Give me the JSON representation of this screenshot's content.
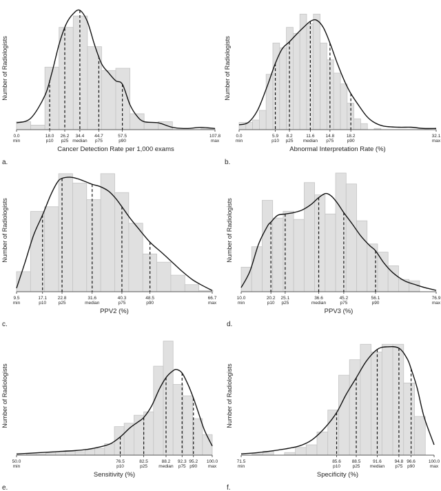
{
  "chart_data": [
    {
      "panel": "a.",
      "type": "area",
      "xlabel": "Cancer Detection Rate per 1,000 exams",
      "ylabel": "Number of Radiologists",
      "xlim": [
        0.0,
        107.8
      ],
      "ticks": [
        {
          "value": 0.0,
          "text": "0.0",
          "name": "min"
        },
        {
          "value": 18.0,
          "text": "18.0",
          "name": "p10"
        },
        {
          "value": 26.2,
          "text": "26.2",
          "name": "p25"
        },
        {
          "value": 34.4,
          "text": "34.4",
          "name": "median"
        },
        {
          "value": 44.7,
          "text": "44.7",
          "name": "p75"
        },
        {
          "value": 57.5,
          "text": "57.5",
          "name": "p90"
        },
        {
          "value": 107.8,
          "text": "107.8",
          "name": "max"
        }
      ],
      "percentile_lines": [
        18.0,
        26.2,
        34.4,
        44.7,
        57.5
      ],
      "histogram": {
        "bins": [
          0,
          7.7,
          15.4,
          23.1,
          30.8,
          38.5,
          46.2,
          53.9,
          61.6,
          69.3,
          77.0,
          84.7,
          92.4,
          100.1,
          107.8
        ],
        "counts": [
          7,
          4,
          55,
          90,
          100,
          73,
          52,
          54,
          14,
          6,
          7,
          0,
          0,
          1
        ]
      },
      "density": [
        [
          0.0,
          6
        ],
        [
          7.7,
          10
        ],
        [
          15.4,
          30
        ],
        [
          19.2,
          50
        ],
        [
          23.1,
          75
        ],
        [
          27.0,
          93
        ],
        [
          30.8,
          102
        ],
        [
          34.4,
          105
        ],
        [
          38.5,
          95
        ],
        [
          42.3,
          75
        ],
        [
          46.2,
          58
        ],
        [
          50.0,
          50
        ],
        [
          53.9,
          43
        ],
        [
          57.5,
          40
        ],
        [
          61.6,
          22
        ],
        [
          65.4,
          12
        ],
        [
          69.3,
          7
        ],
        [
          77.0,
          6
        ],
        [
          84.7,
          2
        ],
        [
          92.4,
          1
        ],
        [
          100.1,
          2
        ],
        [
          107.8,
          1
        ]
      ]
    },
    {
      "panel": "b.",
      "type": "area",
      "xlabel": "Abnormal Interpretation Rate (%)",
      "ylabel": "Number of Radiologists",
      "xlim": [
        0.0,
        32.1
      ],
      "ticks": [
        {
          "value": 0.0,
          "text": "0.0",
          "name": "min"
        },
        {
          "value": 5.9,
          "text": "5.9",
          "name": "p10"
        },
        {
          "value": 8.2,
          "text": "8.2",
          "name": "p25"
        },
        {
          "value": 11.6,
          "text": "11.6",
          "name": "median"
        },
        {
          "value": 14.8,
          "text": "14.8",
          "name": "p75"
        },
        {
          "value": 18.2,
          "text": "18.2",
          "name": "p90"
        },
        {
          "value": 32.1,
          "text": "32.1",
          "name": "max"
        }
      ],
      "percentile_lines": [
        5.9,
        8.2,
        11.6,
        14.8,
        18.2
      ],
      "histogram": {
        "bins": [
          0,
          1.1,
          2.2,
          3.3,
          4.4,
          5.5,
          6.6,
          7.7,
          8.8,
          9.9,
          11.0,
          12.1,
          13.2,
          14.3,
          15.4,
          16.5,
          17.6,
          18.7,
          19.8,
          20.9,
          22.0,
          23.1
        ],
        "counts": [
          6,
          6,
          8,
          16,
          46,
          72,
          68,
          85,
          80,
          96,
          88,
          96,
          72,
          58,
          47,
          38,
          22,
          9,
          5,
          0,
          1
        ]
      },
      "density": [
        [
          0.0,
          4
        ],
        [
          1.5,
          6
        ],
        [
          3.0,
          16
        ],
        [
          4.5,
          35
        ],
        [
          5.9,
          55
        ],
        [
          7.0,
          67
        ],
        [
          8.2,
          73
        ],
        [
          9.5,
          80
        ],
        [
          10.5,
          85
        ],
        [
          11.6,
          90
        ],
        [
          12.6,
          91
        ],
        [
          13.7,
          85
        ],
        [
          14.8,
          72
        ],
        [
          16.0,
          55
        ],
        [
          17.2,
          40
        ],
        [
          18.2,
          30
        ],
        [
          19.5,
          20
        ],
        [
          20.8,
          11
        ],
        [
          22.0,
          6
        ],
        [
          23.5,
          3
        ],
        [
          26.0,
          2
        ],
        [
          28.0,
          2
        ],
        [
          30.0,
          1
        ],
        [
          32.1,
          1
        ]
      ]
    },
    {
      "panel": "c.",
      "type": "area",
      "xlabel": "PPV2 (%)",
      "ylabel": "Number of Radiologists",
      "xlim": [
        9.5,
        66.7
      ],
      "ticks": [
        {
          "value": 9.5,
          "text": "9.5",
          "name": "min"
        },
        {
          "value": 17.1,
          "text": "17.1",
          "name": "p10"
        },
        {
          "value": 22.8,
          "text": "22.8",
          "name": "p25"
        },
        {
          "value": 31.6,
          "text": "31.6",
          "name": "median"
        },
        {
          "value": 40.3,
          "text": "40.3",
          "name": "p75"
        },
        {
          "value": 48.5,
          "text": "48.5",
          "name": "p90"
        },
        {
          "value": 66.7,
          "text": "66.7",
          "name": "max"
        }
      ],
      "percentile_lines": [
        17.1,
        22.8,
        31.6,
        40.3,
        48.5
      ],
      "histogram": {
        "bins": [
          9.5,
          13.6,
          17.7,
          21.8,
          25.9,
          30.0,
          34.1,
          38.2,
          42.3,
          46.4,
          50.5,
          54.6,
          58.7,
          62.8,
          66.9
        ],
        "counts": [
          17,
          68,
          72,
          100,
          92,
          78,
          100,
          84,
          58,
          32,
          25,
          14,
          6,
          1
        ]
      },
      "density": [
        [
          9.5,
          3
        ],
        [
          12.0,
          25
        ],
        [
          14.5,
          48
        ],
        [
          17.1,
          65
        ],
        [
          19.5,
          82
        ],
        [
          21.5,
          93
        ],
        [
          22.8,
          96
        ],
        [
          25.0,
          97
        ],
        [
          27.0,
          96
        ],
        [
          29.0,
          94
        ],
        [
          31.6,
          91
        ],
        [
          34.0,
          89
        ],
        [
          36.5,
          85
        ],
        [
          38.5,
          79
        ],
        [
          40.3,
          72
        ],
        [
          42.5,
          63
        ],
        [
          45.0,
          54
        ],
        [
          48.5,
          42
        ],
        [
          52.0,
          33
        ],
        [
          55.0,
          25
        ],
        [
          58.0,
          17
        ],
        [
          61.0,
          10
        ],
        [
          64.0,
          5
        ],
        [
          66.7,
          1
        ]
      ]
    },
    {
      "panel": "d.",
      "type": "area",
      "xlabel": "PPV3 (%)",
      "ylabel": "Number of Radiologists",
      "xlim": [
        10.0,
        76.9
      ],
      "ticks": [
        {
          "value": 10.0,
          "text": "10.0",
          "name": "min"
        },
        {
          "value": 20.2,
          "text": "20.2",
          "name": "p10"
        },
        {
          "value": 25.1,
          "text": "25.1",
          "name": "p25"
        },
        {
          "value": 36.6,
          "text": "36.6",
          "name": "median"
        },
        {
          "value": 45.2,
          "text": "45.2",
          "name": "p75"
        },
        {
          "value": 56.1,
          "text": "56.1",
          "name": "p90"
        },
        {
          "value": 76.9,
          "text": "76.9",
          "name": "max"
        }
      ],
      "percentile_lines": [
        20.2,
        25.1,
        36.6,
        45.2,
        56.1
      ],
      "histogram": {
        "bins": [
          10.0,
          13.6,
          17.2,
          20.8,
          24.4,
          28.0,
          31.6,
          35.2,
          38.8,
          42.4,
          46.0,
          49.6,
          53.2,
          56.8,
          60.4,
          64.0,
          67.6,
          71.2
        ],
        "counts": [
          18,
          33,
          67,
          54,
          59,
          53,
          80,
          71,
          57,
          87,
          79,
          52,
          35,
          29,
          19,
          9,
          8
        ]
      },
      "density": [
        [
          10.0,
          3
        ],
        [
          13.0,
          15
        ],
        [
          16.0,
          35
        ],
        [
          19.0,
          48
        ],
        [
          20.2,
          51
        ],
        [
          22.5,
          56
        ],
        [
          25.1,
          57
        ],
        [
          28.0,
          58
        ],
        [
          31.0,
          60
        ],
        [
          34.0,
          64
        ],
        [
          36.6,
          69
        ],
        [
          39.0,
          72
        ],
        [
          41.0,
          70
        ],
        [
          43.0,
          65
        ],
        [
          45.2,
          58
        ],
        [
          48.0,
          50
        ],
        [
          51.0,
          41
        ],
        [
          54.0,
          34
        ],
        [
          56.1,
          30
        ],
        [
          59.0,
          21
        ],
        [
          62.0,
          14
        ],
        [
          66.0,
          8
        ],
        [
          70.0,
          5
        ],
        [
          73.0,
          3
        ],
        [
          76.9,
          1
        ]
      ]
    },
    {
      "panel": "e.",
      "type": "area",
      "xlabel": "Sensitivity (%)",
      "ylabel": "Number of Radiologists",
      "xlim": [
        50.0,
        100.0
      ],
      "ticks": [
        {
          "value": 50.0,
          "text": "50.0",
          "name": "min"
        },
        {
          "value": 76.5,
          "text": "76.5",
          "name": "p10"
        },
        {
          "value": 82.5,
          "text": "82.5",
          "name": "p25"
        },
        {
          "value": 88.2,
          "text": "88.2",
          "name": "median"
        },
        {
          "value": 92.3,
          "text": "92.3",
          "name": "p75"
        },
        {
          "value": 95.2,
          "text": "95.2",
          "name": "p90"
        },
        {
          "value": 100.0,
          "text": "100.0",
          "name": "max"
        }
      ],
      "percentile_lines": [
        76.5,
        82.5,
        88.2,
        92.3,
        95.2
      ],
      "histogram": {
        "bins": [
          50.0,
          52.5,
          55.0,
          57.5,
          60.0,
          62.5,
          65.0,
          67.5,
          70.0,
          72.5,
          75.0,
          77.5,
          80.0,
          82.5,
          85.0,
          87.5,
          90.0,
          92.5,
          95.0,
          97.5,
          100.0
        ],
        "counts": [
          0,
          1,
          1,
          2,
          3,
          4,
          3,
          5,
          6,
          10,
          25,
          28,
          35,
          38,
          78,
          100,
          62,
          52,
          32,
          18
        ]
      },
      "density": [
        [
          50.0,
          1
        ],
        [
          55.0,
          2
        ],
        [
          60.0,
          3
        ],
        [
          65.0,
          4
        ],
        [
          68.0,
          5
        ],
        [
          71.0,
          7
        ],
        [
          74.0,
          10
        ],
        [
          76.5,
          16
        ],
        [
          79.0,
          24
        ],
        [
          81.0,
          29
        ],
        [
          82.5,
          33
        ],
        [
          84.5,
          43
        ],
        [
          86.5,
          58
        ],
        [
          88.2,
          68
        ],
        [
          90.0,
          74
        ],
        [
          91.0,
          75
        ],
        [
          92.3,
          72
        ],
        [
          93.8,
          62
        ],
        [
          95.2,
          50
        ],
        [
          96.5,
          37
        ],
        [
          98.0,
          22
        ],
        [
          100.0,
          8
        ]
      ]
    },
    {
      "panel": "f.",
      "type": "area",
      "xlabel": "Specificity (%)",
      "ylabel": "Number of Radiologists",
      "xlim": [
        71.5,
        100.0
      ],
      "ticks": [
        {
          "value": 71.5,
          "text": "71.5",
          "name": "min"
        },
        {
          "value": 85.6,
          "text": "85.6",
          "name": "p10"
        },
        {
          "value": 88.5,
          "text": "88.5",
          "name": "p25"
        },
        {
          "value": 91.6,
          "text": "91.6",
          "name": "median"
        },
        {
          "value": 94.8,
          "text": "94.8",
          "name": "p75"
        },
        {
          "value": 96.6,
          "text": "96.6",
          "name": "p90"
        },
        {
          "value": 100.0,
          "text": "100.0",
          "name": "max"
        }
      ],
      "percentile_lines": [
        85.6,
        88.5,
        91.6,
        94.8,
        96.6
      ],
      "histogram": {
        "bins": [
          71.5,
          73.1,
          74.7,
          76.3,
          77.9,
          79.5,
          81.1,
          82.7,
          84.3,
          85.9,
          87.5,
          89.1,
          90.7,
          92.3,
          93.9,
          95.5,
          97.1,
          98.7
        ],
        "counts": [
          0,
          1,
          3,
          0,
          2,
          6,
          8,
          18,
          35,
          62,
          74,
          86,
          80,
          86,
          86,
          56,
          30
        ]
      },
      "density": [
        [
          71.5,
          1
        ],
        [
          74.0,
          2
        ],
        [
          77.0,
          4
        ],
        [
          80.0,
          7
        ],
        [
          82.0,
          12
        ],
        [
          84.0,
          22
        ],
        [
          85.6,
          33
        ],
        [
          87.0,
          47
        ],
        [
          88.5,
          60
        ],
        [
          90.0,
          73
        ],
        [
          91.6,
          82
        ],
        [
          93.0,
          84
        ],
        [
          94.8,
          83
        ],
        [
          96.0,
          75
        ],
        [
          96.6,
          67
        ],
        [
          97.5,
          52
        ],
        [
          98.5,
          30
        ],
        [
          100.0,
          8
        ]
      ]
    }
  ]
}
